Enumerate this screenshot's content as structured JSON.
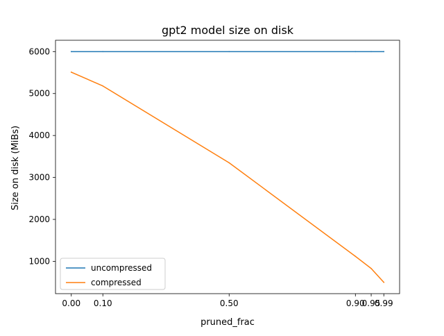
{
  "chart_data": {
    "type": "line",
    "title": "gpt2 model size on disk",
    "xlabel": "pruned_frac",
    "ylabel": "Size on disk (MiBs)",
    "x": [
      0.0,
      0.1,
      0.5,
      0.9,
      0.95,
      0.99
    ],
    "xticks": [
      0.0,
      0.1,
      0.5,
      0.9,
      0.95,
      0.99
    ],
    "xtick_labels": [
      "0.00",
      "0.10",
      "0.50",
      "0.90",
      "0.95",
      "0.99"
    ],
    "yticks": [
      1000,
      2000,
      3000,
      4000,
      5000,
      6000
    ],
    "ytick_labels": [
      "1000",
      "2000",
      "3000",
      "4000",
      "5000",
      "6000"
    ],
    "xlim": [
      -0.05,
      1.04
    ],
    "ylim": [
      230,
      6270
    ],
    "grid": false,
    "legend_position": "lower left",
    "series": [
      {
        "name": "uncompressed",
        "color": "#1f77b4",
        "values": [
          6000,
          6000,
          6000,
          6000,
          6000,
          6000
        ]
      },
      {
        "name": "compressed",
        "color": "#ff7f0e",
        "values": [
          5510,
          5180,
          3350,
          1120,
          830,
          500
        ]
      }
    ]
  }
}
